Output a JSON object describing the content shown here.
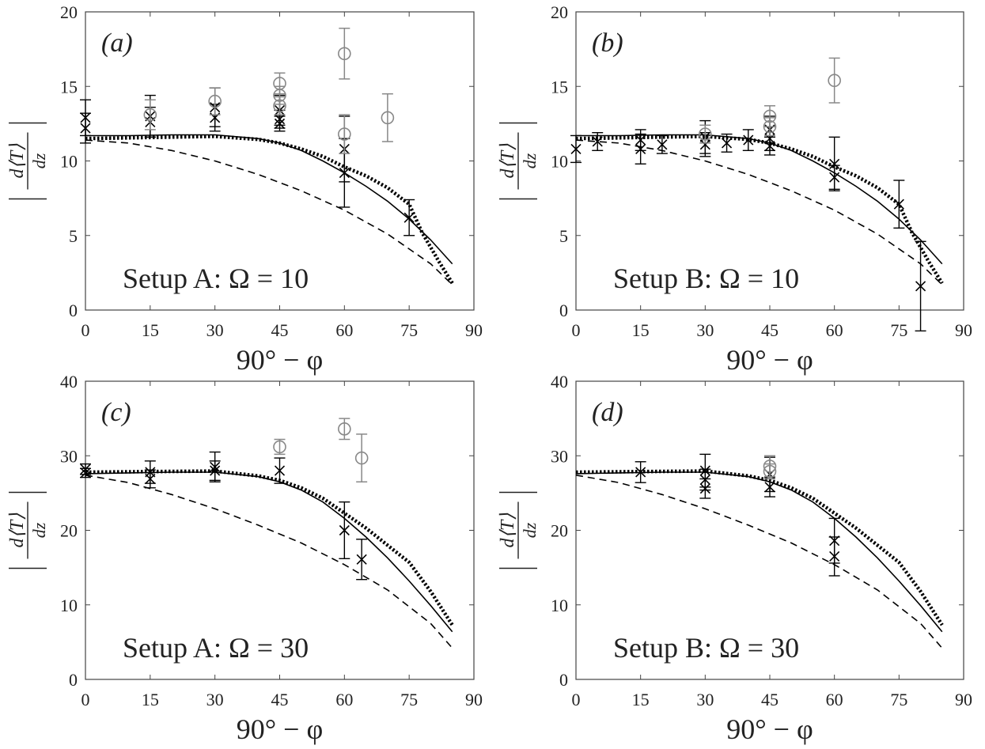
{
  "figure": {
    "xlabel": "90° − φ",
    "ylabel": {
      "numerator": "d⟨T⟩",
      "denominator": "dz"
    }
  },
  "chart_data": [
    {
      "id": "a",
      "panel_tag": "(a)",
      "annotation": "Setup A: Ω = 10",
      "type": "line",
      "xlim": [
        0,
        90
      ],
      "ylim": [
        0,
        20
      ],
      "xticks": [
        0,
        15,
        30,
        45,
        60,
        75,
        90
      ],
      "yticks": [
        0,
        5,
        10,
        15,
        20
      ],
      "grid": false,
      "lines": [
        {
          "style": "solid",
          "x": [
            0,
            10,
            20,
            30,
            40,
            45,
            50,
            55,
            60,
            65,
            70,
            75,
            80,
            85
          ],
          "y": [
            11.7,
            11.7,
            11.75,
            11.75,
            11.5,
            11.2,
            10.7,
            10.0,
            9.2,
            8.3,
            7.3,
            6.1,
            4.7,
            3.1
          ]
        },
        {
          "style": "dotted",
          "x": [
            0,
            10,
            20,
            30,
            40,
            45,
            50,
            55,
            60,
            65,
            70,
            75,
            78,
            82,
            85
          ],
          "y": [
            11.5,
            11.55,
            11.6,
            11.65,
            11.45,
            11.2,
            10.8,
            10.3,
            9.6,
            9.0,
            8.2,
            7.1,
            5.2,
            3.2,
            1.8
          ]
        },
        {
          "style": "dashed",
          "x": [
            0,
            10,
            20,
            30,
            40,
            50,
            60,
            70,
            80,
            85
          ],
          "y": [
            11.4,
            11.2,
            10.7,
            10.0,
            9.1,
            8.0,
            6.7,
            5.1,
            3.1,
            1.7
          ]
        }
      ],
      "points": [
        {
          "marker": "x",
          "color": "#000000",
          "x": 0,
          "y": 12.9,
          "err": 1.2
        },
        {
          "marker": "x",
          "color": "#000000",
          "x": 0,
          "y": 12.2,
          "err": 1.0
        },
        {
          "marker": "x",
          "color": "#000000",
          "x": 15,
          "y": 13.0,
          "err": 1.4
        },
        {
          "marker": "x",
          "color": "#000000",
          "x": 15,
          "y": 12.6,
          "err": 1.0
        },
        {
          "marker": "x",
          "color": "#000000",
          "x": 30,
          "y": 13.6,
          "err": 1.3
        },
        {
          "marker": "x",
          "color": "#000000",
          "x": 30,
          "y": 12.9,
          "err": 0.9
        },
        {
          "marker": "x",
          "color": "#000000",
          "x": 45,
          "y": 13.4,
          "err": 1.0
        },
        {
          "marker": "x",
          "color": "#000000",
          "x": 45,
          "y": 12.8,
          "err": 0.6
        },
        {
          "marker": "x",
          "color": "#000000",
          "x": 45,
          "y": 12.5,
          "err": 0.5
        },
        {
          "marker": "x",
          "color": "#000000",
          "x": 60,
          "y": 10.8,
          "err": 2.2
        },
        {
          "marker": "x",
          "color": "#000000",
          "x": 60,
          "y": 9.2,
          "err": 2.3
        },
        {
          "marker": "x",
          "color": "#000000",
          "x": 75,
          "y": 6.2,
          "err": 1.2
        },
        {
          "marker": "o",
          "color": "#888888",
          "x": 15,
          "y": 13.1,
          "err": 1.0
        },
        {
          "marker": "o",
          "color": "#888888",
          "x": 30,
          "y": 14.0,
          "err": 0.9
        },
        {
          "marker": "o",
          "color": "#888888",
          "x": 45,
          "y": 15.2,
          "err": 0.7
        },
        {
          "marker": "o",
          "color": "#888888",
          "x": 45,
          "y": 14.4,
          "err": 0.6
        },
        {
          "marker": "o",
          "color": "#888888",
          "x": 45,
          "y": 13.7,
          "err": 0.6
        },
        {
          "marker": "o",
          "color": "#888888",
          "x": 60,
          "y": 17.2,
          "err": 1.7
        },
        {
          "marker": "o",
          "color": "#888888",
          "x": 60,
          "y": 11.8,
          "err": 1.3
        },
        {
          "marker": "o",
          "color": "#888888",
          "x": 70,
          "y": 12.9,
          "err": 1.6
        }
      ]
    },
    {
      "id": "b",
      "panel_tag": "(b)",
      "annotation": "Setup B: Ω = 10",
      "type": "line",
      "xlim": [
        0,
        90
      ],
      "ylim": [
        0,
        20
      ],
      "xticks": [
        0,
        15,
        30,
        45,
        60,
        75,
        90
      ],
      "yticks": [
        0,
        5,
        10,
        15,
        20
      ],
      "grid": false,
      "lines": [
        {
          "style": "solid",
          "x": [
            0,
            10,
            20,
            30,
            40,
            45,
            50,
            55,
            60,
            65,
            70,
            75,
            80,
            85
          ],
          "y": [
            11.7,
            11.7,
            11.75,
            11.75,
            11.5,
            11.2,
            10.7,
            10.0,
            9.2,
            8.3,
            7.3,
            6.1,
            4.7,
            3.1
          ]
        },
        {
          "style": "dotted",
          "x": [
            0,
            10,
            20,
            30,
            40,
            45,
            50,
            55,
            60,
            65,
            70,
            75,
            78,
            82,
            85
          ],
          "y": [
            11.5,
            11.55,
            11.6,
            11.65,
            11.45,
            11.2,
            10.8,
            10.3,
            9.6,
            9.0,
            8.2,
            7.1,
            5.2,
            3.2,
            1.8
          ]
        },
        {
          "style": "dashed",
          "x": [
            0,
            10,
            20,
            30,
            40,
            50,
            60,
            70,
            80,
            85
          ],
          "y": [
            11.4,
            11.2,
            10.7,
            10.0,
            9.1,
            8.0,
            6.7,
            5.1,
            3.1,
            1.7
          ]
        }
      ],
      "points": [
        {
          "marker": "x",
          "color": "#000000",
          "x": 0,
          "y": 10.8,
          "err": 0.9
        },
        {
          "marker": "x",
          "color": "#000000",
          "x": 5,
          "y": 11.3,
          "err": 0.6
        },
        {
          "marker": "x",
          "color": "#000000",
          "x": 15,
          "y": 11.4,
          "err": 0.7
        },
        {
          "marker": "x",
          "color": "#000000",
          "x": 15,
          "y": 10.8,
          "err": 1.0
        },
        {
          "marker": "x",
          "color": "#000000",
          "x": 20,
          "y": 11.1,
          "err": 0.6
        },
        {
          "marker": "x",
          "color": "#000000",
          "x": 30,
          "y": 11.6,
          "err": 1.1
        },
        {
          "marker": "x",
          "color": "#000000",
          "x": 30,
          "y": 11.1,
          "err": 0.8
        },
        {
          "marker": "x",
          "color": "#000000",
          "x": 35,
          "y": 11.2,
          "err": 0.6
        },
        {
          "marker": "x",
          "color": "#000000",
          "x": 40,
          "y": 11.4,
          "err": 0.7
        },
        {
          "marker": "x",
          "color": "#000000",
          "x": 45,
          "y": 12.1,
          "err": 0.9
        },
        {
          "marker": "x",
          "color": "#000000",
          "x": 45,
          "y": 11.5,
          "err": 0.8
        },
        {
          "marker": "x",
          "color": "#000000",
          "x": 45,
          "y": 11.0,
          "err": 0.6
        },
        {
          "marker": "x",
          "color": "#000000",
          "x": 60,
          "y": 9.8,
          "err": 1.8
        },
        {
          "marker": "x",
          "color": "#000000",
          "x": 60,
          "y": 8.9,
          "err": 0.8
        },
        {
          "marker": "x",
          "color": "#000000",
          "x": 75,
          "y": 7.1,
          "err": 1.6
        },
        {
          "marker": "x",
          "color": "#000000",
          "x": 80,
          "y": 1.6,
          "err": 3.0
        },
        {
          "marker": "o",
          "color": "#888888",
          "x": 30,
          "y": 11.8,
          "err": 0.6
        },
        {
          "marker": "o",
          "color": "#888888",
          "x": 45,
          "y": 13.0,
          "err": 0.7
        },
        {
          "marker": "o",
          "color": "#888888",
          "x": 45,
          "y": 12.3,
          "err": 0.6
        },
        {
          "marker": "o",
          "color": "#888888",
          "x": 60,
          "y": 15.4,
          "err": 1.5
        }
      ]
    },
    {
      "id": "c",
      "panel_tag": "(c)",
      "annotation": "Setup A: Ω = 30",
      "type": "line",
      "xlim": [
        0,
        90
      ],
      "ylim": [
        0,
        40
      ],
      "xticks": [
        0,
        15,
        30,
        45,
        60,
        75,
        90
      ],
      "yticks": [
        0,
        10,
        20,
        30,
        40
      ],
      "grid": false,
      "lines": [
        {
          "style": "solid",
          "x": [
            0,
            10,
            20,
            30,
            40,
            45,
            50,
            55,
            60,
            65,
            70,
            75,
            80,
            85
          ],
          "y": [
            27.6,
            27.7,
            27.8,
            27.8,
            27.2,
            26.5,
            25.4,
            23.8,
            21.6,
            19.1,
            16.3,
            13.2,
            9.9,
            6.4
          ]
        },
        {
          "style": "dotted",
          "x": [
            0,
            10,
            20,
            30,
            40,
            45,
            50,
            55,
            60,
            65,
            70,
            75,
            80,
            85
          ],
          "y": [
            27.8,
            27.85,
            27.9,
            27.95,
            27.3,
            26.7,
            25.7,
            24.3,
            22.3,
            20.3,
            18.0,
            15.7,
            11.8,
            7.3
          ]
        },
        {
          "style": "dashed",
          "x": [
            0,
            10,
            20,
            30,
            40,
            50,
            60,
            70,
            80,
            85
          ],
          "y": [
            27.4,
            26.4,
            24.8,
            22.9,
            20.7,
            18.3,
            15.4,
            12.0,
            7.5,
            4.2
          ]
        }
      ],
      "points": [
        {
          "marker": "x",
          "color": "#000000",
          "x": 0,
          "y": 28.2,
          "err": 0.7
        },
        {
          "marker": "x",
          "color": "#000000",
          "x": 0,
          "y": 27.7,
          "err": 0.6
        },
        {
          "marker": "x",
          "color": "#000000",
          "x": 15,
          "y": 27.8,
          "err": 1.5
        },
        {
          "marker": "x",
          "color": "#000000",
          "x": 15,
          "y": 26.9,
          "err": 1.2
        },
        {
          "marker": "x",
          "color": "#000000",
          "x": 30,
          "y": 28.5,
          "err": 2.0
        },
        {
          "marker": "x",
          "color": "#000000",
          "x": 30,
          "y": 28.0,
          "err": 1.3
        },
        {
          "marker": "x",
          "color": "#000000",
          "x": 45,
          "y": 28.0,
          "err": 1.7
        },
        {
          "marker": "x",
          "color": "#000000",
          "x": 60,
          "y": 20.0,
          "err": 3.8
        },
        {
          "marker": "x",
          "color": "#000000",
          "x": 64,
          "y": 16.1,
          "err": 2.7
        },
        {
          "marker": "o",
          "color": "#888888",
          "x": 45,
          "y": 31.2,
          "err": 1.0
        },
        {
          "marker": "o",
          "color": "#888888",
          "x": 60,
          "y": 33.6,
          "err": 1.4
        },
        {
          "marker": "o",
          "color": "#888888",
          "x": 64,
          "y": 29.7,
          "err": 3.2
        }
      ]
    },
    {
      "id": "d",
      "panel_tag": "(d)",
      "annotation": "Setup B: Ω = 30",
      "type": "line",
      "xlim": [
        0,
        90
      ],
      "ylim": [
        0,
        40
      ],
      "xticks": [
        0,
        15,
        30,
        45,
        60,
        75,
        90
      ],
      "yticks": [
        0,
        10,
        20,
        30,
        40
      ],
      "grid": false,
      "lines": [
        {
          "style": "solid",
          "x": [
            0,
            10,
            20,
            30,
            40,
            45,
            50,
            55,
            60,
            65,
            70,
            75,
            80,
            85
          ],
          "y": [
            27.6,
            27.7,
            27.8,
            27.8,
            27.2,
            26.5,
            25.4,
            23.8,
            21.6,
            19.1,
            16.3,
            13.2,
            9.9,
            6.4
          ]
        },
        {
          "style": "dotted",
          "x": [
            0,
            10,
            20,
            30,
            40,
            45,
            50,
            55,
            60,
            65,
            70,
            75,
            80,
            85
          ],
          "y": [
            27.8,
            27.85,
            27.9,
            27.95,
            27.3,
            26.7,
            25.7,
            24.3,
            22.3,
            20.3,
            18.0,
            15.7,
            11.8,
            7.3
          ]
        },
        {
          "style": "dashed",
          "x": [
            0,
            10,
            20,
            30,
            40,
            50,
            60,
            70,
            80,
            85
          ],
          "y": [
            27.4,
            26.4,
            24.8,
            22.9,
            20.7,
            18.3,
            15.4,
            12.0,
            7.5,
            4.2
          ]
        }
      ],
      "points": [
        {
          "marker": "x",
          "color": "#000000",
          "x": 15,
          "y": 27.8,
          "err": 1.4
        },
        {
          "marker": "x",
          "color": "#000000",
          "x": 30,
          "y": 28.0,
          "err": 2.2
        },
        {
          "marker": "x",
          "color": "#000000",
          "x": 30,
          "y": 26.8,
          "err": 1.4
        },
        {
          "marker": "x",
          "color": "#000000",
          "x": 30,
          "y": 25.6,
          "err": 1.3
        },
        {
          "marker": "x",
          "color": "#000000",
          "x": 45,
          "y": 27.5,
          "err": 2.3
        },
        {
          "marker": "x",
          "color": "#000000",
          "x": 45,
          "y": 25.8,
          "err": 1.3
        },
        {
          "marker": "x",
          "color": "#000000",
          "x": 60,
          "y": 18.6,
          "err": 3.0
        },
        {
          "marker": "x",
          "color": "#000000",
          "x": 60,
          "y": 16.5,
          "err": 2.6
        },
        {
          "marker": "o",
          "color": "#888888",
          "x": 45,
          "y": 28.6,
          "err": 1.4
        },
        {
          "marker": "o",
          "color": "#888888",
          "x": 45,
          "y": 27.9,
          "err": 1.0
        }
      ]
    }
  ]
}
